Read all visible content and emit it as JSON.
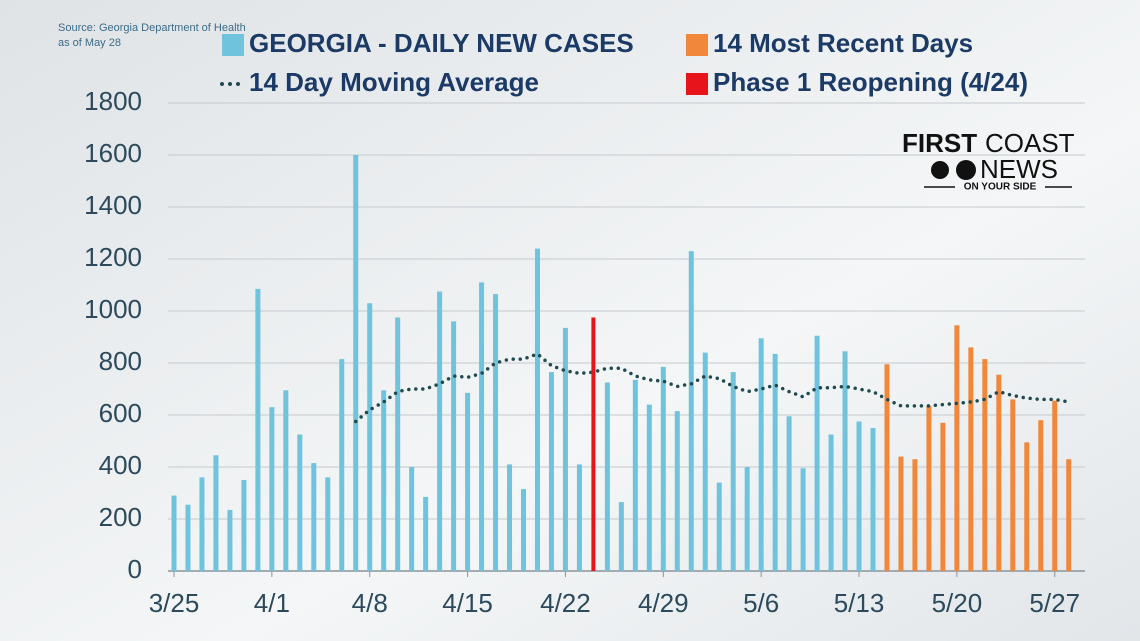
{
  "chart_data": {
    "type": "bar",
    "source": [
      "Source: Georgia Department of Health",
      "as of May 28"
    ],
    "logo": {
      "first": "FIRST",
      "coast": "COAST",
      "news": "NEWS",
      "tagline": "ON YOUR SIDE"
    },
    "categories": [
      "3/25",
      null,
      null,
      null,
      null,
      null,
      null,
      "4/1",
      null,
      null,
      null,
      null,
      null,
      null,
      "4/8",
      null,
      null,
      null,
      null,
      null,
      null,
      "4/15",
      null,
      null,
      null,
      null,
      null,
      null,
      "4/22",
      null,
      null,
      null,
      null,
      null,
      null,
      "4/29",
      null,
      null,
      null,
      null,
      null,
      null,
      "5/6",
      null,
      null,
      null,
      null,
      null,
      null,
      "5/13",
      null,
      null,
      null,
      null,
      null,
      null,
      "5/20",
      null,
      null,
      null,
      null,
      null,
      null,
      "5/27",
      null
    ],
    "series": [
      {
        "name": "GEORGIA - DAILY NEW CASES",
        "color": "#6fc3dc",
        "values": [
          290,
          255,
          360,
          445,
          235,
          350,
          1085,
          630,
          695,
          525,
          415,
          360,
          815,
          1600,
          1030,
          695,
          975,
          400,
          285,
          1075,
          960,
          685,
          1110,
          1065,
          410,
          315,
          1240,
          765,
          935,
          410,
          null,
          725,
          265,
          735,
          640,
          785,
          615,
          1230,
          840,
          340,
          765,
          400,
          895,
          835,
          595,
          395,
          905,
          525,
          845,
          575,
          550,
          null,
          null,
          null,
          null,
          null,
          null,
          null,
          null,
          null,
          null,
          null,
          null,
          null,
          null
        ]
      },
      {
        "name": "14 Most Recent Days",
        "color": "#f0873a",
        "values": [
          null,
          null,
          null,
          null,
          null,
          null,
          null,
          null,
          null,
          null,
          null,
          null,
          null,
          null,
          null,
          null,
          null,
          null,
          null,
          null,
          null,
          null,
          null,
          null,
          null,
          null,
          null,
          null,
          null,
          null,
          null,
          null,
          null,
          null,
          null,
          null,
          null,
          null,
          null,
          null,
          null,
          null,
          null,
          null,
          null,
          null,
          null,
          null,
          null,
          null,
          null,
          795,
          440,
          430,
          635,
          570,
          945,
          860,
          815,
          755,
          660,
          495,
          580,
          655,
          430
        ]
      },
      {
        "name": "14 Day Moving Average",
        "color": "#1f4a4f",
        "type": "line",
        "values": [
          null,
          null,
          null,
          null,
          null,
          null,
          null,
          null,
          null,
          null,
          null,
          null,
          null,
          575,
          620,
          650,
          690,
          700,
          700,
          720,
          750,
          745,
          760,
          800,
          815,
          815,
          835,
          790,
          770,
          760,
          765,
          780,
          780,
          750,
          735,
          730,
          710,
          720,
          750,
          740,
          710,
          690,
          700,
          715,
          690,
          670,
          705,
          705,
          710,
          700,
          690,
          660,
          635,
          635,
          635,
          640,
          645,
          650,
          660,
          690,
          675,
          665,
          660,
          660,
          650
        ]
      },
      {
        "name": "Phase 1 Reopening (4/24)",
        "color": "#e8141c",
        "values": [
          null,
          null,
          null,
          null,
          null,
          null,
          null,
          null,
          null,
          null,
          null,
          null,
          null,
          null,
          null,
          null,
          null,
          null,
          null,
          null,
          null,
          null,
          null,
          null,
          null,
          null,
          null,
          null,
          null,
          null,
          975,
          null,
          null,
          null,
          null,
          null,
          null,
          null,
          null,
          null,
          null,
          null,
          null,
          null,
          null,
          null,
          null,
          null,
          null,
          null,
          null,
          null,
          null,
          null,
          null,
          null,
          null,
          null,
          null,
          null,
          null,
          null,
          null,
          null,
          null
        ]
      }
    ],
    "ylim": [
      0,
      1800
    ],
    "yticks": [
      0,
      200,
      400,
      600,
      800,
      1000,
      1200,
      1400,
      1600,
      1800
    ],
    "grid": true
  }
}
